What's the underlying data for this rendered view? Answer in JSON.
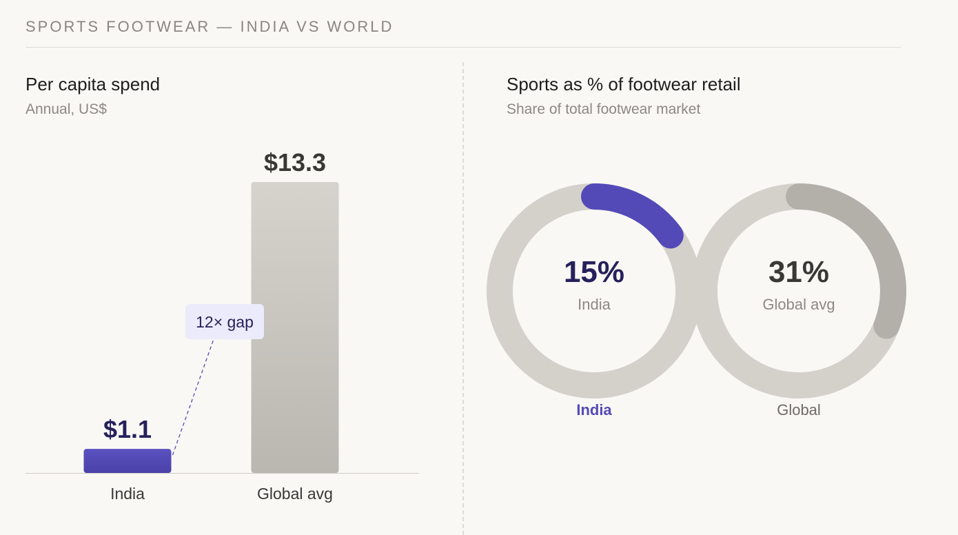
{
  "header": {
    "eyebrow": "SPORTS FOOTWEAR — INDIA VS WORLD"
  },
  "left_panel": {
    "title": "Per capita spend",
    "subtitle": "Annual, US$"
  },
  "right_panel": {
    "title": "Sports as % of footwear retail",
    "subtitle": "Share of total footwear market"
  },
  "colors": {
    "accent": "#534ab7",
    "accent_dark": "#26215c",
    "grey_bar_top": "#d5d3cc",
    "grey_bar_bottom": "#b9b7b0",
    "track": "#d4d1ca",
    "global_arc": "#b2b0a9",
    "value_dark": "#3a3835",
    "annotation_bg": "#ecebfb"
  },
  "chart_data": [
    {
      "type": "bar",
      "title": "Per capita spend",
      "subtitle": "Annual, US$",
      "categories": [
        "India",
        "Global avg"
      ],
      "values": [
        1.1,
        13.3
      ],
      "value_labels": [
        "$1.1",
        "$13.3"
      ],
      "ylim": [
        0,
        13.3
      ],
      "grid": false,
      "annotation": {
        "text": "12× gap"
      }
    },
    {
      "type": "pie",
      "variant": "donut",
      "title": "Sports as % of footwear retail",
      "subtitle": "Share of total footwear market",
      "items": [
        {
          "name": "India",
          "value": 15,
          "value_label": "15%",
          "center_label": "India",
          "caption": "India"
        },
        {
          "name": "Global",
          "value": 31,
          "value_label": "31%",
          "center_label": "Global avg",
          "caption": "Global"
        }
      ]
    }
  ]
}
